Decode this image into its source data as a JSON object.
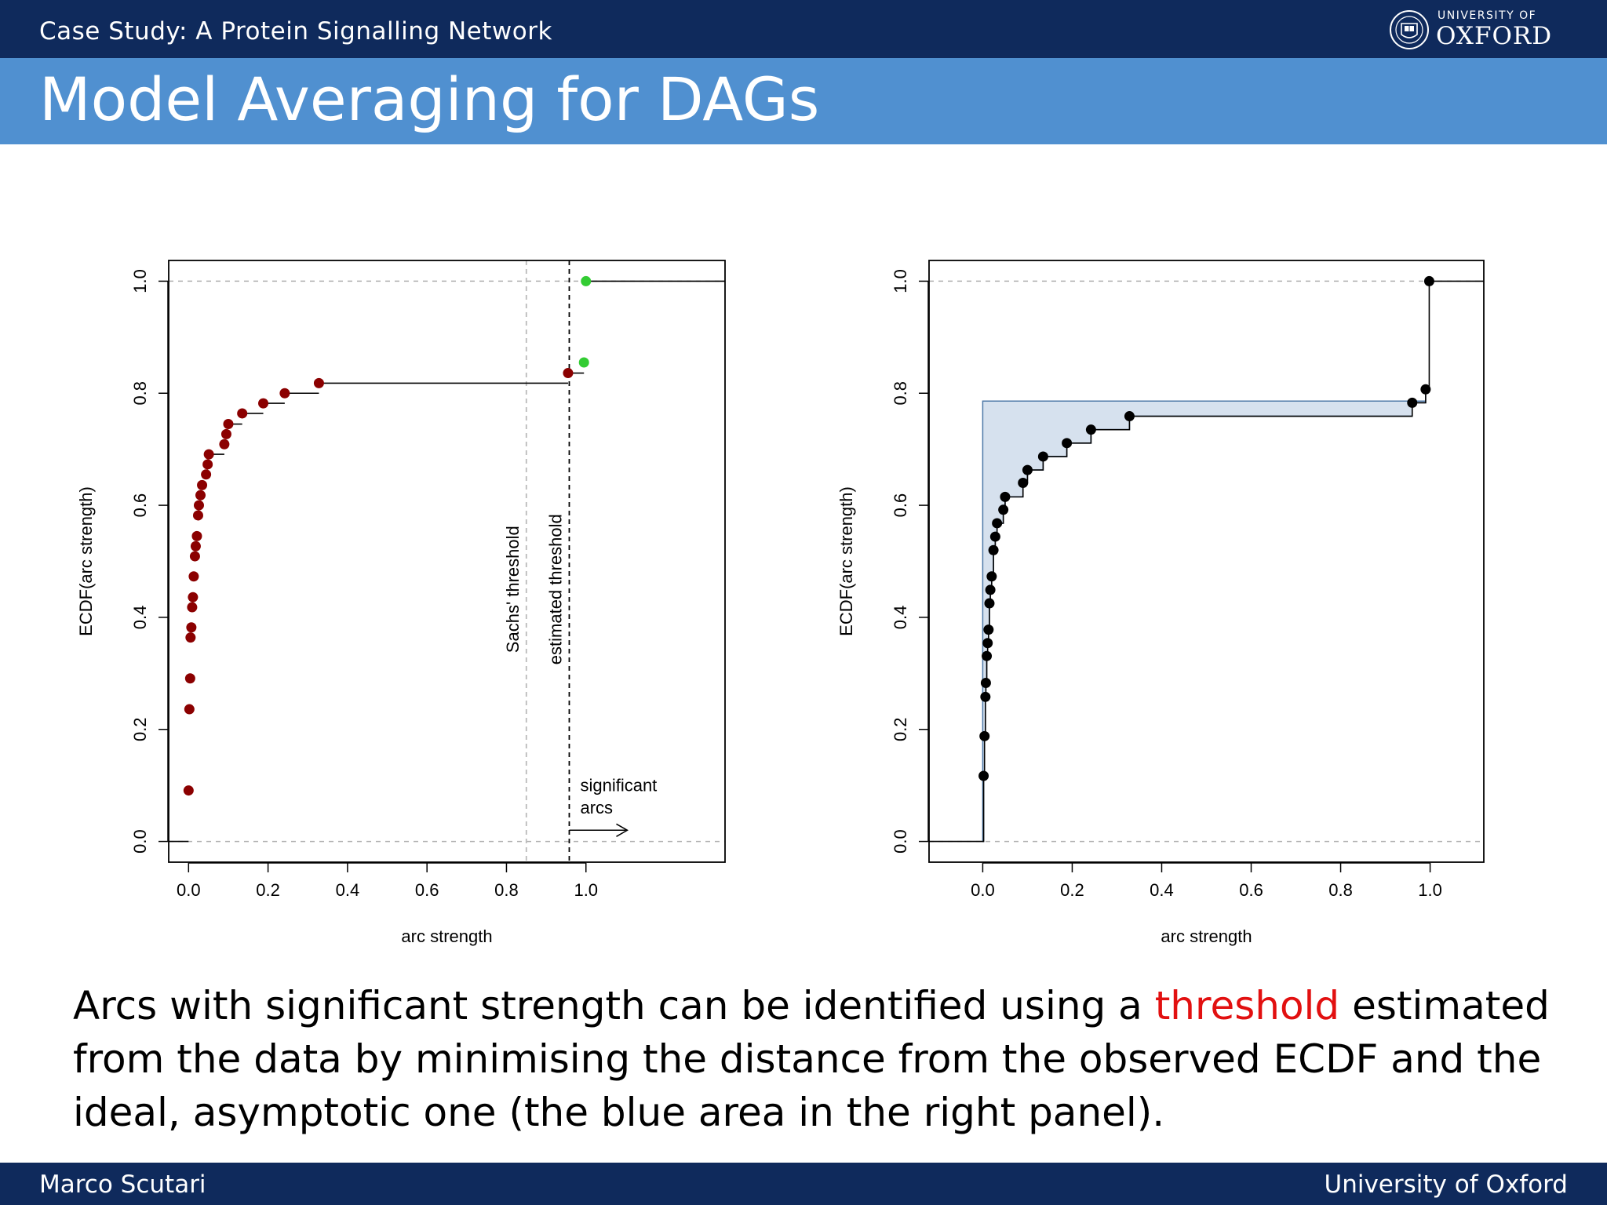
{
  "header": {
    "section_title": "Case Study:  A Protein Signalling Network",
    "logo_small": "UNIVERSITY OF",
    "logo_large": "OXFORD"
  },
  "frame_title": "Model Averaging for DAGs",
  "body": {
    "text_before": "Arcs with significant strength can be identified using a ",
    "highlight": "threshold",
    "text_after": " estimated from the data by minimising the distance from the observed ECDF and the ideal, asymptotic one (the blue area in the right panel).",
    "highlight_color": "#e21010"
  },
  "footer": {
    "left": "Marco Scutari",
    "right": "University of Oxford"
  },
  "chart_data": [
    {
      "type": "line",
      "xlabel": "arc strength",
      "ylabel": "ECDF(arc strength)",
      "xlim": [
        -0.05,
        1.35
      ],
      "ylim": [
        -0.037,
        1.037
      ],
      "x_ticks": [
        "0.0",
        "0.2",
        "0.4",
        "0.6",
        "0.8",
        "1.0"
      ],
      "y_ticks": [
        "0.0",
        "0.2",
        "0.4",
        "0.6",
        "0.8",
        "1.0"
      ],
      "grid": false,
      "hlines": [
        0,
        1
      ],
      "vlines": [
        {
          "x": 0.85,
          "label": "Sachs' threshold",
          "color": "#bbbbbb"
        },
        {
          "x": 0.958,
          "label": "estimated threshold",
          "color": "#000000"
        }
      ],
      "annotation": {
        "text": [
          "significant",
          "arcs"
        ],
        "arrow": true
      },
      "series": [
        {
          "color": "#8b0000",
          "points": [
            [
              0.0,
              0.091
            ],
            [
              0.002,
              0.236
            ],
            [
              0.004,
              0.291
            ],
            [
              0.005,
              0.364
            ],
            [
              0.007,
              0.382
            ],
            [
              0.009,
              0.418
            ],
            [
              0.011,
              0.436
            ],
            [
              0.013,
              0.473
            ],
            [
              0.016,
              0.509
            ],
            [
              0.018,
              0.527
            ],
            [
              0.021,
              0.545
            ],
            [
              0.024,
              0.582
            ],
            [
              0.026,
              0.6
            ],
            [
              0.03,
              0.618
            ],
            [
              0.034,
              0.636
            ],
            [
              0.044,
              0.655
            ],
            [
              0.048,
              0.673
            ],
            [
              0.051,
              0.691
            ],
            [
              0.09,
              0.709
            ],
            [
              0.095,
              0.727
            ],
            [
              0.1,
              0.745
            ],
            [
              0.135,
              0.764
            ],
            [
              0.188,
              0.782
            ],
            [
              0.242,
              0.8
            ],
            [
              0.328,
              0.818
            ],
            [
              0.955,
              0.836
            ]
          ]
        },
        {
          "color": "#33cc33",
          "points": [
            [
              0.995,
              0.855
            ],
            [
              1.0,
              1.0
            ]
          ]
        }
      ]
    },
    {
      "type": "line",
      "xlabel": "arc strength",
      "ylabel": "ECDF(arc strength)",
      "xlim": [
        -0.12,
        1.12
      ],
      "ylim": [
        -0.037,
        1.037
      ],
      "x_ticks": [
        "0.0",
        "0.2",
        "0.4",
        "0.6",
        "0.8",
        "1.0"
      ],
      "y_ticks": [
        "0.0",
        "0.2",
        "0.4",
        "0.6",
        "0.8",
        "1.0"
      ],
      "grid": false,
      "hlines": [
        0,
        1
      ],
      "shaded_area": {
        "color": "#d6e1ee",
        "border": "#4f7aa8",
        "plateau": 0.786
      },
      "series": [
        {
          "color": "#000000",
          "points": [
            [
              0.002,
              0.117
            ],
            [
              0.004,
              0.188
            ],
            [
              0.006,
              0.258
            ],
            [
              0.007,
              0.283
            ],
            [
              0.009,
              0.331
            ],
            [
              0.011,
              0.354
            ],
            [
              0.013,
              0.378
            ],
            [
              0.015,
              0.425
            ],
            [
              0.017,
              0.449
            ],
            [
              0.02,
              0.473
            ],
            [
              0.024,
              0.52
            ],
            [
              0.028,
              0.544
            ],
            [
              0.032,
              0.568
            ],
            [
              0.046,
              0.592
            ],
            [
              0.05,
              0.615
            ],
            [
              0.09,
              0.64
            ],
            [
              0.1,
              0.663
            ],
            [
              0.135,
              0.687
            ],
            [
              0.188,
              0.711
            ],
            [
              0.242,
              0.735
            ],
            [
              0.328,
              0.759
            ],
            [
              0.96,
              0.783
            ],
            [
              0.99,
              0.807
            ],
            [
              0.998,
              1.0
            ]
          ]
        }
      ]
    }
  ]
}
